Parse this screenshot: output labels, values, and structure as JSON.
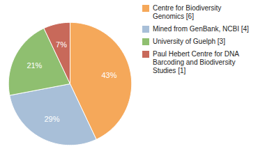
{
  "chart_data": {
    "type": "pie",
    "categories": [
      "Centre for Biodiversity\nGenomics [6]",
      "Mined from GenBank, NCBI [4]",
      "University of Guelph [3]",
      "Paul Hebert Centre for DNA\nBarcoding and Biodiversity\nStudies [1]"
    ],
    "values": [
      43,
      29,
      21,
      7
    ],
    "value_labels": [
      "43%",
      "29%",
      "21%",
      "7%"
    ],
    "colors": [
      "#F5A85A",
      "#A8BFD8",
      "#8FBF70",
      "#C8695A"
    ],
    "data_labels": true,
    "legend": "right"
  }
}
